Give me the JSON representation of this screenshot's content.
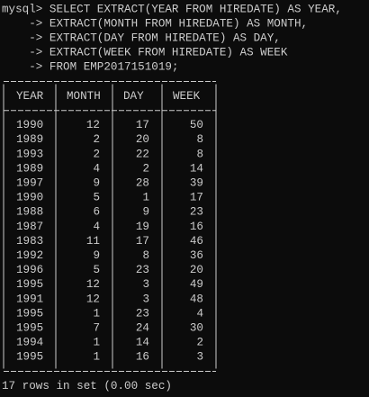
{
  "terminal": {
    "query_lines": [
      "mysql> SELECT EXTRACT(YEAR FROM HIREDATE) AS YEAR,",
      "    -> EXTRACT(MONTH FROM HIREDATE) AS MONTH,",
      "    -> EXTRACT(DAY FROM HIREDATE) AS DAY,",
      "    -> EXTRACT(WEEK FROM HIREDATE) AS WEEK",
      "    -> FROM EMP2017151019;"
    ],
    "table": {
      "columns": [
        "YEAR",
        "MONTH",
        "DAY",
        "WEEK"
      ],
      "rows": [
        [
          1990,
          12,
          17,
          50
        ],
        [
          1989,
          2,
          20,
          8
        ],
        [
          1993,
          2,
          22,
          8
        ],
        [
          1989,
          4,
          2,
          14
        ],
        [
          1997,
          9,
          28,
          39
        ],
        [
          1990,
          5,
          1,
          17
        ],
        [
          1988,
          6,
          9,
          23
        ],
        [
          1987,
          4,
          19,
          16
        ],
        [
          1983,
          11,
          17,
          46
        ],
        [
          1992,
          9,
          8,
          36
        ],
        [
          1996,
          5,
          23,
          20
        ],
        [
          1995,
          12,
          3,
          49
        ],
        [
          1991,
          12,
          3,
          48
        ],
        [
          1995,
          1,
          23,
          4
        ],
        [
          1995,
          7,
          24,
          30
        ],
        [
          1994,
          1,
          14,
          2
        ],
        [
          1995,
          1,
          16,
          3
        ]
      ]
    },
    "footer": "17 rows in set (0.00 sec)"
  }
}
